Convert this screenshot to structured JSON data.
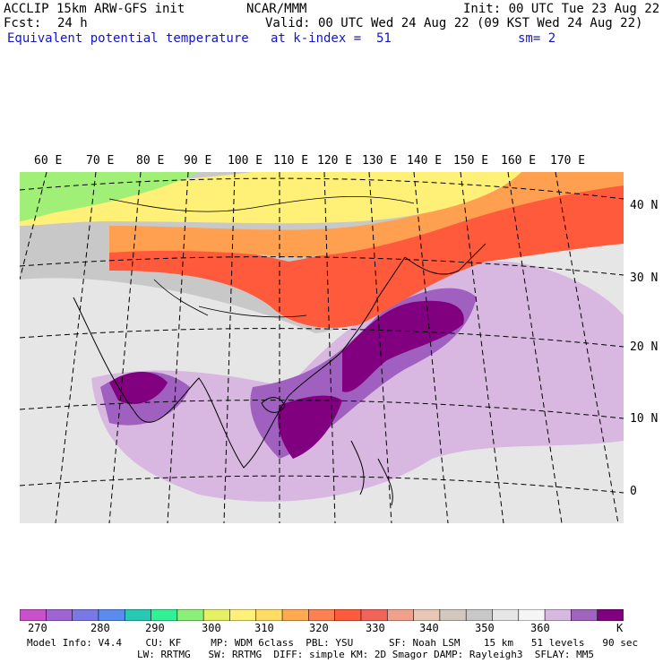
{
  "header": {
    "model": "ACCLIP 15km ARW-GFS init",
    "fcst_label": "Fcst:",
    "fcst_value": "24 h",
    "center": "NCAR/MMM",
    "init": "Init: 00 UTC Tue 23 Aug 22",
    "valid": "Valid: 00 UTC Wed 24 Aug 22 (09 KST Wed 24 Aug 22)",
    "field": "Equivalent potential temperature",
    "level": "at k-index =  51",
    "smooth": "sm= 2"
  },
  "map": {
    "lon_labels": [
      "60 E",
      "70 E",
      "80 E",
      "90 E",
      "100 E",
      "110 E",
      "120 E",
      "130 E",
      "140 E",
      "150 E",
      "160 E",
      "170 E"
    ],
    "lat_labels": [
      "40 N",
      "30 N",
      "20 N",
      "10 N",
      "0"
    ],
    "colors": {
      "ocean_gray": "#c8c8c8",
      "light_gray": "#e6e6e6",
      "pale_purple": "#d8b8e0",
      "mid_purple": "#a060c0",
      "dark_purple": "#800080",
      "orange_red": "#ff5a3c",
      "orange": "#ffa050",
      "yellow": "#fff078",
      "green": "#a0f078"
    }
  },
  "colorbar": {
    "labels": [
      "270",
      "280",
      "290",
      "300",
      "310",
      "320",
      "330",
      "340",
      "350",
      "360",
      "K"
    ],
    "colors": [
      "#c850c8",
      "#a064d2",
      "#7878e6",
      "#5a8cf0",
      "#28c8b4",
      "#32f096",
      "#8cf078",
      "#e6f064",
      "#fff078",
      "#ffdc64",
      "#ffaa50",
      "#ff8050",
      "#ff5a3c",
      "#f0645a",
      "#f0a08c",
      "#e6c8b4",
      "#d2c8be",
      "#c8c8c8",
      "#e6e6e6",
      "#f5f5f5",
      "#d8b8e0",
      "#a064c0",
      "#800080"
    ]
  },
  "footer": {
    "line1": "Model Info: V4.4    CU: KF     MP: WDM 6class  PBL: YSU      SF: Noah LSM    15 km   51 levels   90 sec",
    "line2": "LW: RRTMG   SW: RRTMG  DIFF: simple KM: 2D Smagor DAMP: Rayleigh3  SFLAY: MM5"
  }
}
